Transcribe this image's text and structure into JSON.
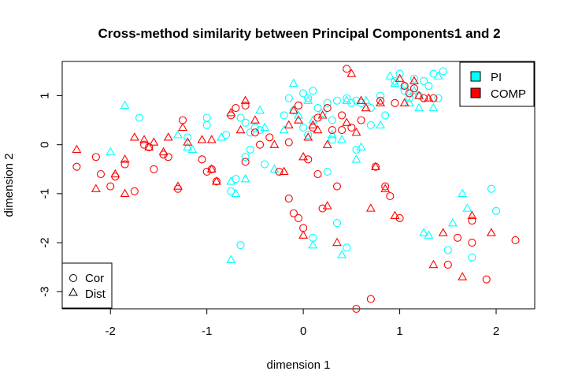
{
  "chart_data": {
    "type": "scatter",
    "title": "Cross-method similarity between Principal Components1 and 2",
    "xlabel": "dimension 1",
    "ylabel": "dimension 2",
    "xlim": [
      -2.5,
      2.4
    ],
    "ylim": [
      -3.35,
      1.7
    ],
    "x_ticks": [
      -2,
      -1,
      0,
      1,
      2
    ],
    "y_ticks": [
      -3,
      -2,
      -1,
      0,
      1
    ],
    "x_tick_labels": [
      "-2",
      "-1",
      "0",
      "1",
      "2"
    ],
    "y_tick_labels": [
      "-3",
      "-2",
      "-1",
      "0",
      "1"
    ],
    "grid": false,
    "color_legend": {
      "placement": "top-right",
      "entries": [
        {
          "label": "PI",
          "color": "#00ffff"
        },
        {
          "label": "COMP",
          "color": "#ff0000"
        }
      ]
    },
    "shape_legend": {
      "placement": "bottom-left",
      "entries": [
        {
          "label": "Cor",
          "shape": "circle"
        },
        {
          "label": "Dist",
          "shape": "triangle"
        }
      ]
    },
    "series": [
      {
        "name": "PI",
        "color": "#00ffff",
        "shape": "circle",
        "points": [
          [
            -1.7,
            0.55
          ],
          [
            -1.2,
            0.15
          ],
          [
            -1.0,
            0.55
          ],
          [
            -1.0,
            0.4
          ],
          [
            -0.8,
            0.2
          ],
          [
            -0.65,
            0.55
          ],
          [
            -0.6,
            0.45
          ],
          [
            -0.55,
            0.25
          ],
          [
            -0.5,
            0.35
          ],
          [
            -0.45,
            0.3
          ],
          [
            -0.55,
            -0.1
          ],
          [
            -0.6,
            -0.25
          ],
          [
            -0.7,
            -0.7
          ],
          [
            -0.75,
            -0.95
          ],
          [
            -0.4,
            -0.4
          ],
          [
            -0.2,
            0.6
          ],
          [
            -0.15,
            0.95
          ],
          [
            -0.05,
            0.8
          ],
          [
            0.0,
            1.05
          ],
          [
            0.05,
            0.95
          ],
          [
            0.1,
            1.1
          ],
          [
            0.15,
            0.75
          ],
          [
            0.2,
            0.65
          ],
          [
            0.25,
            0.85
          ],
          [
            0.3,
            0.5
          ],
          [
            0.35,
            0.9
          ],
          [
            0.45,
            0.95
          ],
          [
            0.5,
            0.85
          ],
          [
            0.55,
            0.9
          ],
          [
            0.6,
            0.85
          ],
          [
            0.7,
            0.75
          ],
          [
            0.8,
            1.0
          ],
          [
            0.85,
            0.6
          ],
          [
            0.95,
            1.3
          ],
          [
            1.0,
            1.45
          ],
          [
            1.05,
            1.1
          ],
          [
            1.1,
            0.95
          ],
          [
            1.15,
            1.35
          ],
          [
            1.25,
            1.3
          ],
          [
            1.3,
            1.2
          ],
          [
            1.35,
            1.45
          ],
          [
            1.45,
            1.5
          ],
          [
            1.4,
            0.95
          ],
          [
            0.05,
            0.2
          ],
          [
            0.1,
            -1.9
          ],
          [
            0.25,
            -0.55
          ],
          [
            0.35,
            -1.6
          ],
          [
            0.45,
            -2.1
          ],
          [
            0.55,
            -0.1
          ],
          [
            0.0,
            0.35
          ],
          [
            -0.1,
            0.7
          ],
          [
            -0.65,
            -2.05
          ],
          [
            1.95,
            -0.9
          ],
          [
            2.0,
            -1.35
          ],
          [
            1.75,
            -2.3
          ],
          [
            1.5,
            -2.15
          ],
          [
            0.7,
            0.4
          ],
          [
            1.2,
            1.0
          ],
          [
            0.3,
            0.1
          ]
        ]
      },
      {
        "name": "PI",
        "color": "#00ffff",
        "shape": "triangle",
        "points": [
          [
            -2.0,
            -0.15
          ],
          [
            -1.85,
            0.8
          ],
          [
            -1.3,
            0.2
          ],
          [
            -1.2,
            -0.05
          ],
          [
            -1.15,
            -0.1
          ],
          [
            -0.85,
            0.15
          ],
          [
            -0.75,
            -0.75
          ],
          [
            -0.7,
            -1.0
          ],
          [
            -0.6,
            -0.7
          ],
          [
            -0.4,
            0.35
          ],
          [
            -0.3,
            -0.5
          ],
          [
            -0.1,
            1.25
          ],
          [
            -0.05,
            0.6
          ],
          [
            0.05,
            0.9
          ],
          [
            0.1,
            0.5
          ],
          [
            0.3,
            0.2
          ],
          [
            0.4,
            0.1
          ],
          [
            0.45,
            0.9
          ],
          [
            0.6,
            -0.05
          ],
          [
            0.65,
            0.9
          ],
          [
            0.8,
            0.4
          ],
          [
            0.9,
            1.4
          ],
          [
            0.95,
            1.25
          ],
          [
            1.05,
            1.2
          ],
          [
            1.1,
            0.85
          ],
          [
            1.2,
            0.75
          ],
          [
            1.35,
            0.75
          ],
          [
            1.4,
            1.4
          ],
          [
            1.25,
            -1.8
          ],
          [
            1.3,
            -1.85
          ],
          [
            1.55,
            -1.6
          ],
          [
            1.65,
            -1.0
          ],
          [
            1.7,
            -1.3
          ],
          [
            0.1,
            -2.05
          ],
          [
            0.4,
            -2.25
          ],
          [
            -0.75,
            -2.35
          ],
          [
            -0.2,
            0.3
          ],
          [
            1.15,
            1.1
          ],
          [
            0.55,
            -0.3
          ],
          [
            -0.45,
            0.7
          ]
        ]
      },
      {
        "name": "COMP",
        "color": "#ff0000",
        "shape": "circle",
        "points": [
          [
            -2.35,
            -0.45
          ],
          [
            -2.15,
            -0.25
          ],
          [
            -2.0,
            -0.85
          ],
          [
            -1.95,
            -0.65
          ],
          [
            -1.85,
            -0.4
          ],
          [
            -1.75,
            -0.95
          ],
          [
            -1.65,
            0.0
          ],
          [
            -1.55,
            -0.5
          ],
          [
            -1.45,
            -0.2
          ],
          [
            -1.4,
            -0.25
          ],
          [
            -1.3,
            -0.9
          ],
          [
            -1.25,
            0.5
          ],
          [
            -1.05,
            -0.3
          ],
          [
            -1.0,
            -0.55
          ],
          [
            -0.95,
            -0.5
          ],
          [
            -0.9,
            -0.75
          ],
          [
            -0.75,
            0.6
          ],
          [
            -0.7,
            0.75
          ],
          [
            -0.6,
            0.8
          ],
          [
            -0.6,
            -0.35
          ],
          [
            -0.45,
            0.0
          ],
          [
            -0.35,
            0.15
          ],
          [
            -0.25,
            -0.55
          ],
          [
            -0.15,
            -1.1
          ],
          [
            -0.1,
            -1.4
          ],
          [
            -0.05,
            -1.5
          ],
          [
            -0.05,
            0.8
          ],
          [
            0.0,
            -1.7
          ],
          [
            0.05,
            -0.3
          ],
          [
            0.1,
            0.35
          ],
          [
            0.15,
            0.55
          ],
          [
            0.2,
            -1.3
          ],
          [
            0.25,
            0.75
          ],
          [
            0.35,
            -0.85
          ],
          [
            0.4,
            0.3
          ],
          [
            0.45,
            1.55
          ],
          [
            0.5,
            0.35
          ],
          [
            0.55,
            -3.35
          ],
          [
            0.7,
            -3.15
          ],
          [
            0.75,
            -0.45
          ],
          [
            0.8,
            0.9
          ],
          [
            0.85,
            -0.85
          ],
          [
            0.9,
            -1.05
          ],
          [
            0.95,
            0.85
          ],
          [
            1.0,
            -1.5
          ],
          [
            1.05,
            1.2
          ],
          [
            1.15,
            1.15
          ],
          [
            1.25,
            0.95
          ],
          [
            1.35,
            0.95
          ],
          [
            1.5,
            -2.45
          ],
          [
            1.6,
            -1.9
          ],
          [
            1.75,
            -2.0
          ],
          [
            1.75,
            -1.55
          ],
          [
            1.9,
            -2.75
          ],
          [
            2.2,
            -1.95
          ],
          [
            -0.15,
            0.05
          ],
          [
            0.3,
            0.3
          ],
          [
            -2.1,
            -0.6
          ],
          [
            -1.6,
            -0.05
          ],
          [
            0.6,
            0.5
          ],
          [
            1.1,
            1.05
          ],
          [
            0.15,
            -0.6
          ],
          [
            -0.5,
            0.25
          ],
          [
            0.4,
            0.6
          ]
        ]
      },
      {
        "name": "COMP",
        "color": "#ff0000",
        "shape": "triangle",
        "points": [
          [
            -2.35,
            -0.1
          ],
          [
            -2.15,
            -0.9
          ],
          [
            -1.95,
            -0.6
          ],
          [
            -1.85,
            -1.0
          ],
          [
            -1.85,
            -0.3
          ],
          [
            -1.75,
            0.15
          ],
          [
            -1.65,
            0.1
          ],
          [
            -1.6,
            -0.05
          ],
          [
            -1.55,
            0.05
          ],
          [
            -1.45,
            -0.15
          ],
          [
            -1.4,
            0.15
          ],
          [
            -1.3,
            -0.85
          ],
          [
            -1.25,
            0.35
          ],
          [
            -1.2,
            0.05
          ],
          [
            -1.05,
            0.1
          ],
          [
            -0.95,
            -0.5
          ],
          [
            -0.9,
            -0.75
          ],
          [
            -0.75,
            0.65
          ],
          [
            -0.6,
            0.9
          ],
          [
            -0.5,
            0.5
          ],
          [
            -0.2,
            -0.55
          ],
          [
            -0.15,
            0.4
          ],
          [
            -0.1,
            0.7
          ],
          [
            0.0,
            -0.25
          ],
          [
            0.0,
            -1.85
          ],
          [
            0.05,
            0.15
          ],
          [
            0.1,
            0.4
          ],
          [
            0.15,
            0.3
          ],
          [
            0.2,
            0.6
          ],
          [
            0.25,
            -1.25
          ],
          [
            0.35,
            -2.0
          ],
          [
            0.45,
            0.45
          ],
          [
            0.5,
            1.45
          ],
          [
            0.55,
            0.25
          ],
          [
            0.6,
            0.9
          ],
          [
            0.7,
            -1.3
          ],
          [
            0.75,
            -0.45
          ],
          [
            0.8,
            0.85
          ],
          [
            0.85,
            -0.9
          ],
          [
            0.95,
            -1.45
          ],
          [
            1.0,
            1.35
          ],
          [
            1.15,
            1.3
          ],
          [
            1.2,
            1.0
          ],
          [
            1.3,
            0.95
          ],
          [
            1.35,
            -2.45
          ],
          [
            1.45,
            -1.8
          ],
          [
            1.65,
            -2.7
          ],
          [
            1.75,
            -1.45
          ],
          [
            1.95,
            -1.8
          ],
          [
            -0.05,
            0.5
          ],
          [
            -0.3,
            0.0
          ],
          [
            1.05,
            0.85
          ],
          [
            0.65,
            0.75
          ],
          [
            -0.65,
            0.3
          ],
          [
            0.25,
            0.0
          ],
          [
            -0.95,
            0.1
          ]
        ]
      }
    ]
  }
}
